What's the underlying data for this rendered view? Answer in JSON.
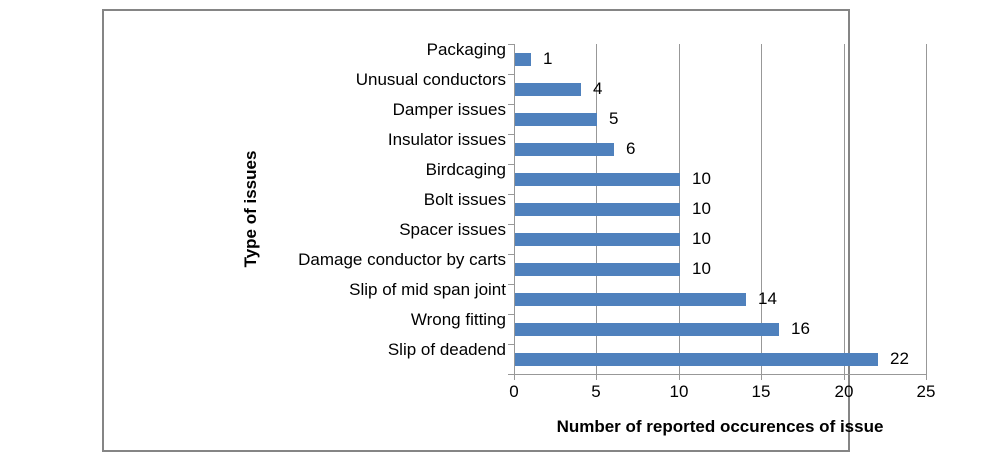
{
  "chart_data": {
    "type": "bar",
    "orientation": "horizontal",
    "categories": [
      "Packaging",
      "Unusual conductors",
      "Damper issues",
      "Insulator issues",
      "Birdcaging",
      "Bolt issues",
      "Spacer issues",
      "Damage conductor by carts",
      "Slip of mid span joint",
      "Wrong fitting",
      "Slip of deadend"
    ],
    "values": [
      1,
      4,
      5,
      6,
      10,
      10,
      10,
      10,
      14,
      16,
      22
    ],
    "data_labels": [
      "1",
      "4",
      "5",
      "6",
      "10",
      "10",
      "10",
      "10",
      "14",
      "16",
      "22"
    ],
    "xlabel": "Number of reported occurences of issue",
    "ylabel": "Type of issues",
    "xlim": [
      0,
      25
    ],
    "xticks": [
      0,
      5,
      10,
      15,
      20,
      25
    ],
    "grid": "vertical-only",
    "legend": "none",
    "colors": {
      "bar": "#4f81bd",
      "gridline": "#989898",
      "axis": "#989898",
      "frame_border": "#858585",
      "text": "#000000"
    }
  }
}
